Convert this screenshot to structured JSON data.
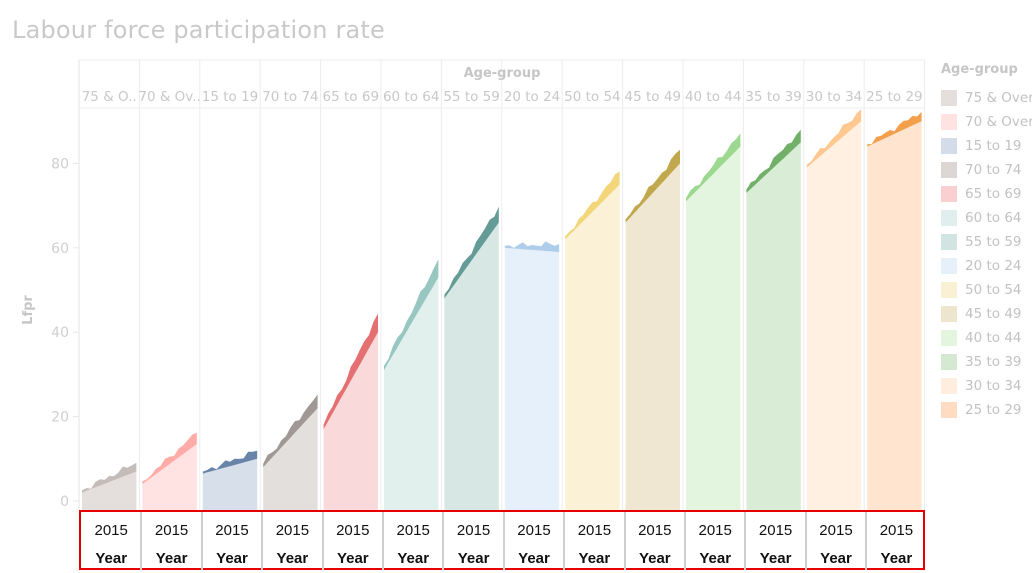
{
  "chart_data": {
    "type": "area",
    "title": "Labour force participation rate",
    "column_header": "Age-group",
    "ylabel": "Lfpr",
    "ylim": [
      0,
      95
    ],
    "yticks": [
      0,
      20,
      40,
      60,
      80
    ],
    "legend_title": "Age-group",
    "legend_position": "right",
    "panels": [
      {
        "label": "75 & O..",
        "start": 2.0,
        "end": 7.0,
        "color": "#b8b0ac",
        "light": "#e4dfdd"
      },
      {
        "label": "70 & Ov..",
        "start": 4.0,
        "end": 13.5,
        "color": "#ff9d9a",
        "light": "#ffe2e1"
      },
      {
        "label": "15 to 19",
        "start": 6.5,
        "end": 10.0,
        "color": "#4e6e9a",
        "light": "#d6dfea"
      },
      {
        "label": "70 to 74",
        "start": 8.0,
        "end": 22.0,
        "color": "#8e8683",
        "light": "#e3dfdd"
      },
      {
        "label": "65 to 69",
        "start": 17.0,
        "end": 40.0,
        "color": "#e15759",
        "light": "#f9d9d9"
      },
      {
        "label": "60 to 64",
        "start": 31.0,
        "end": 53.0,
        "color": "#86bcb6",
        "light": "#e1efed"
      },
      {
        "label": "55 to 59",
        "start": 48.0,
        "end": 66.0,
        "color": "#4a8a84",
        "light": "#d6e7e4"
      },
      {
        "label": "20 to 24",
        "start": 60.0,
        "end": 59.0,
        "color": "#a0c4e6",
        "light": "#e6f0fa"
      },
      {
        "label": "50 to 54",
        "start": 62.0,
        "end": 75.0,
        "color": "#f1ce63",
        "light": "#faf1d7"
      },
      {
        "label": "45 to 49",
        "start": 66.0,
        "end": 80.0,
        "color": "#b6992d",
        "light": "#efe7d2"
      },
      {
        "label": "40 to 44",
        "start": 71.0,
        "end": 84.0,
        "color": "#8cd17d",
        "light": "#e3f5df"
      },
      {
        "label": "35 to 39",
        "start": 73.0,
        "end": 85.0,
        "color": "#59a14f",
        "light": "#d9ecd6"
      },
      {
        "label": "30 to 34",
        "start": 79.0,
        "end": 90.0,
        "color": "#ffbe7d",
        "light": "#fff0e1"
      },
      {
        "label": "25 to 29",
        "start": 84.0,
        "end": 90.0,
        "color": "#f28e2b",
        "light": "#ffe5cf"
      }
    ],
    "legend": [
      {
        "label": "75 & Over",
        "color": "#e4dfdd"
      },
      {
        "label": "70 & Over",
        "color": "#ffe2e1"
      },
      {
        "label": "15 to 19",
        "color": "#d3dce8"
      },
      {
        "label": "70 to 74",
        "color": "#dcd7d5"
      },
      {
        "label": "65 to 69",
        "color": "#f9cfd0"
      },
      {
        "label": "60 to 64",
        "color": "#e0efed"
      },
      {
        "label": "55 to 59",
        "color": "#d2e4e1"
      },
      {
        "label": "20 to 24",
        "color": "#e6f0fa"
      },
      {
        "label": "50 to 54",
        "color": "#faf0d3"
      },
      {
        "label": "45 to 49",
        "color": "#eee5cf"
      },
      {
        "label": "40 to 44",
        "color": "#e3f5df"
      },
      {
        "label": "35 to 39",
        "color": "#d5e9d2"
      },
      {
        "label": "30 to 34",
        "color": "#ffeedd"
      },
      {
        "label": "25 to 29",
        "color": "#ffdcc1"
      }
    ],
    "year_axis": {
      "value": "2015",
      "label": "Year"
    }
  }
}
